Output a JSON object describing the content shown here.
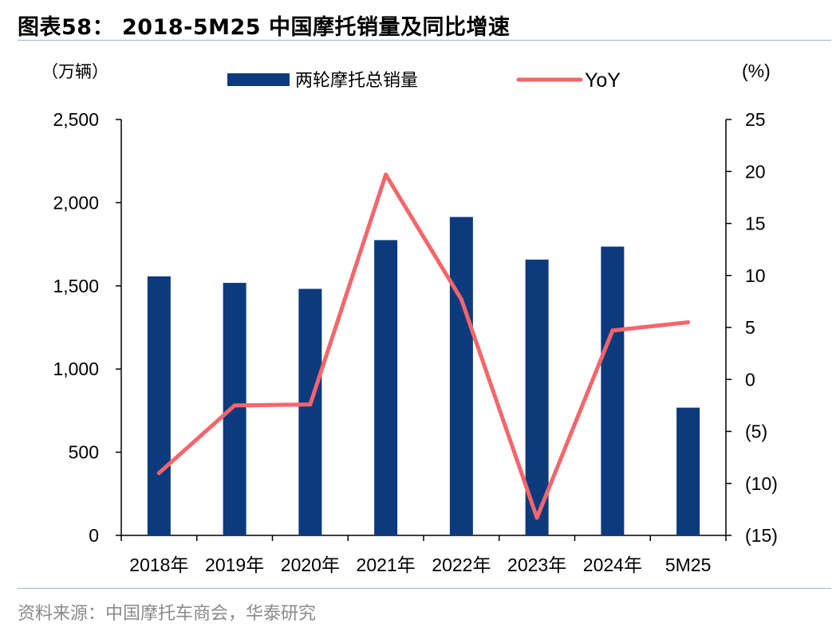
{
  "header": {
    "title": "图表58：  2018-5M25 中国摩托销量及同比增速"
  },
  "footer": {
    "source": "资料来源：中国摩托车商会，华泰研究"
  },
  "chart_data": {
    "type": "bar",
    "categories": [
      "2018年",
      "2019年",
      "2020年",
      "2021年",
      "2022年",
      "2023年",
      "2024年",
      "5M25"
    ],
    "series": [
      {
        "name": "两轮摩托总销量",
        "type": "bar",
        "axis": "left",
        "color": "#0d3a7d",
        "values": [
          1557,
          1518,
          1482,
          1775,
          1914,
          1658,
          1736,
          768
        ]
      },
      {
        "name": "YoY",
        "type": "line",
        "axis": "right",
        "color": "#f4666b",
        "values": [
          -9.0,
          -2.5,
          -2.4,
          19.7,
          7.7,
          -13.3,
          4.7,
          5.5
        ]
      }
    ],
    "left_axis": {
      "unit_label": "（万辆）",
      "ylim": [
        0,
        2500
      ],
      "ticks": [
        0,
        500,
        1000,
        1500,
        2000,
        2500
      ],
      "tick_labels": [
        "0",
        "500",
        "1,000",
        "1,500",
        "2,000",
        "2,500"
      ]
    },
    "right_axis": {
      "unit_label": "(%)",
      "ylim": [
        -15,
        25
      ],
      "ticks": [
        -15,
        -10,
        -5,
        0,
        5,
        10,
        15,
        20,
        25
      ],
      "tick_labels": [
        "(15)",
        "(10)",
        "(5)",
        "0",
        "5",
        "10",
        "15",
        "20",
        "25"
      ]
    },
    "legend_position": "top-center",
    "grid": false
  }
}
